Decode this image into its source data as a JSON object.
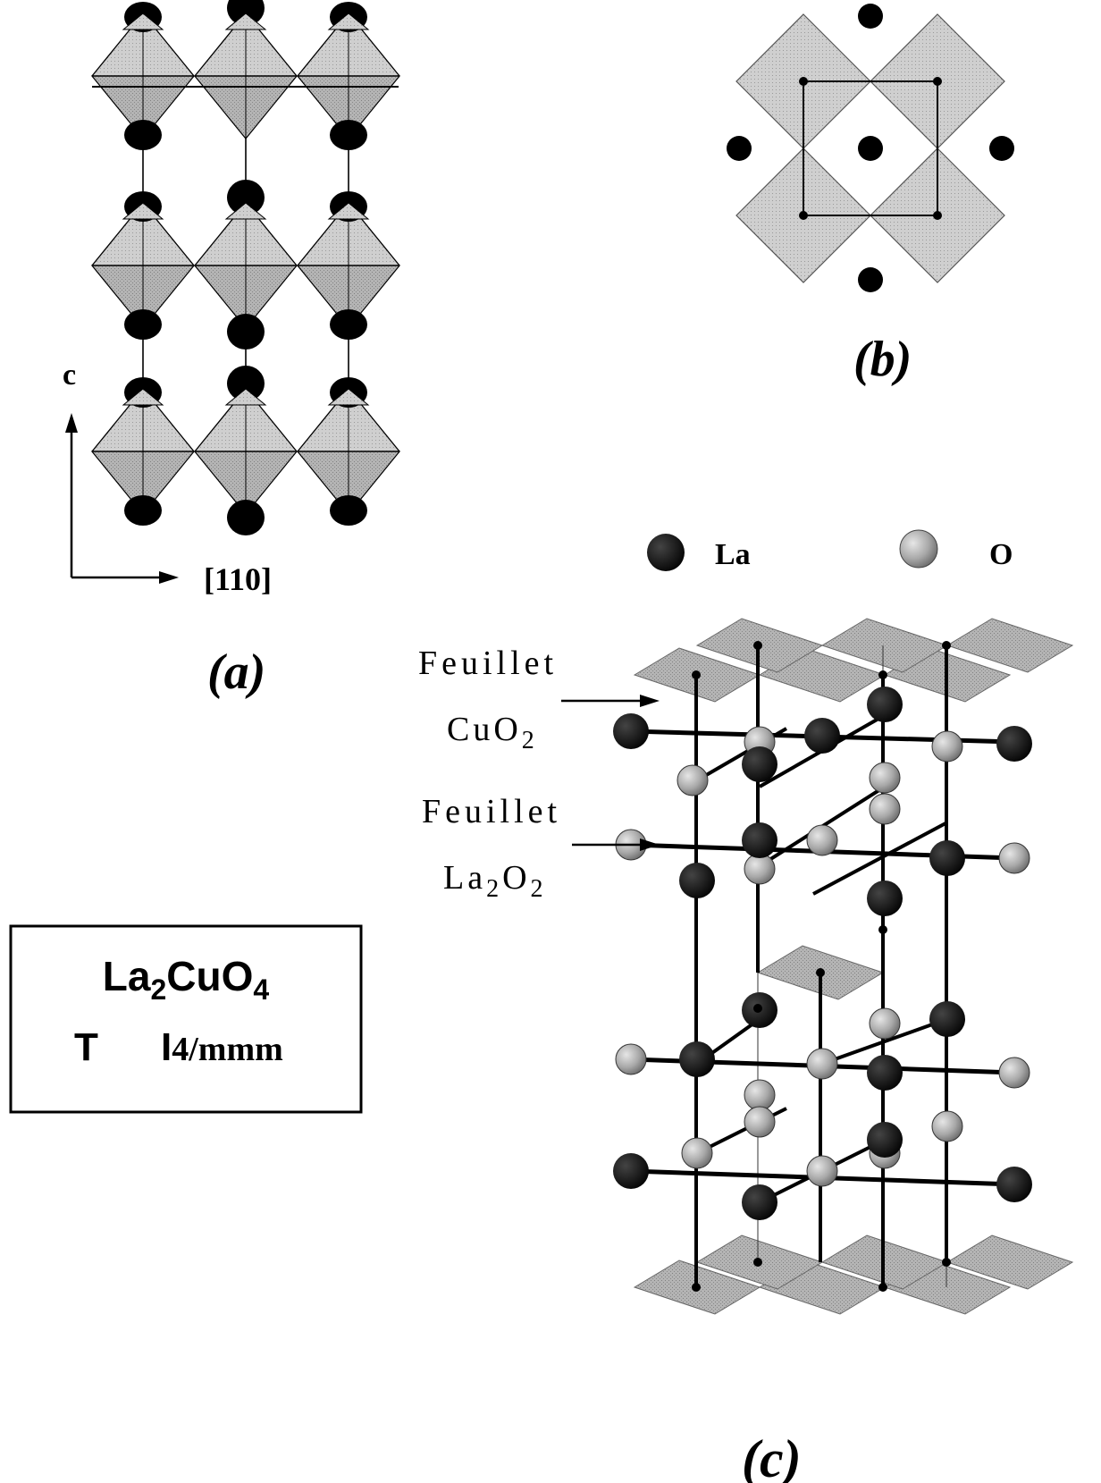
{
  "panels": {
    "a": {
      "caption": "(a)",
      "axis_vertical": "c",
      "axis_horizontal": "[110]"
    },
    "b": {
      "caption": "(b)"
    },
    "c": {
      "caption": "(c)",
      "label_cuo2_word": "Feuillet",
      "label_cuo2_formula": "CuO",
      "label_cuo2_sub": "2",
      "label_la2o2_word": "Feuillet",
      "label_la2o2_formula_a": "La",
      "label_la2o2_sub_a": "2",
      "label_la2o2_formula_b": "O",
      "label_la2o2_sub_b": "2"
    }
  },
  "legend": {
    "la_label": "La",
    "o_label": "O"
  },
  "compound_box": {
    "formula_la": "La",
    "formula_la_sub": "2",
    "formula_cu": "CuO",
    "formula_cu_sub": "4",
    "symmetry_letter": "T",
    "space_group_i": "I",
    "space_group_rest": "4/mmm"
  },
  "colors": {
    "octahedron_fill": "#c8c8c8",
    "octahedron_dark": "#a8a8a8",
    "la_atom": "#111111",
    "o_atom": "#b0b0b0",
    "line": "#000000"
  }
}
